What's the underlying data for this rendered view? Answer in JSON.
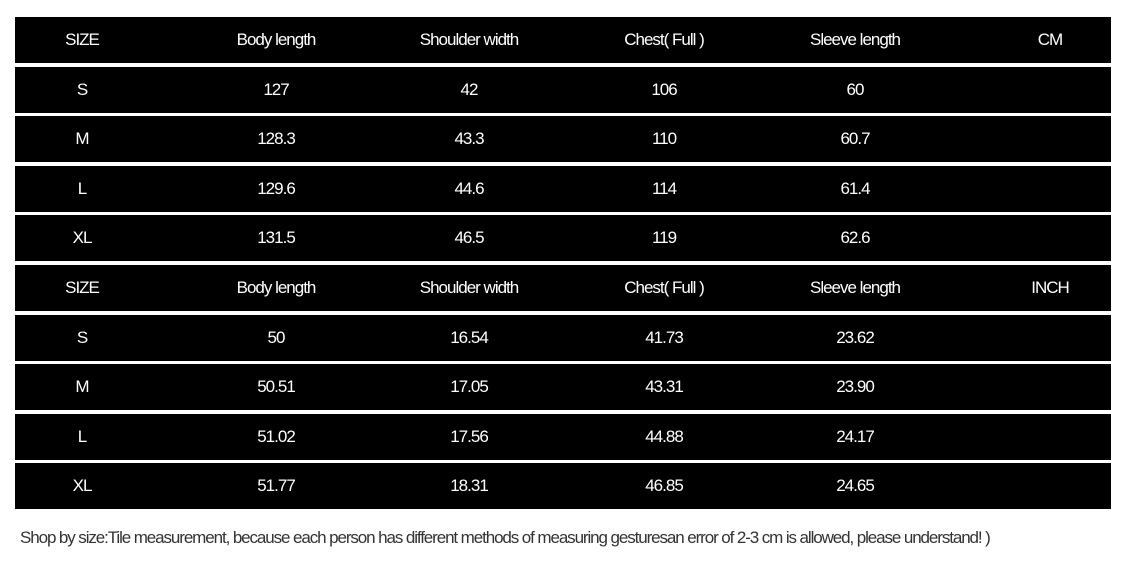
{
  "tables": [
    {
      "header": [
        "SIZE",
        "Body length",
        "Shoulder width",
        "Chest( Full )",
        "Sleeve length",
        "CM"
      ],
      "rows": [
        [
          "S",
          "127",
          "42",
          "106",
          "60"
        ],
        [
          "M",
          "128.3",
          "43.3",
          "110",
          "60.7"
        ],
        [
          "L",
          "129.6",
          "44.6",
          "114",
          "61.4"
        ],
        [
          "XL",
          "131.5",
          "46.5",
          "119",
          "62.6"
        ]
      ]
    },
    {
      "header": [
        "SIZE",
        "Body length",
        "Shoulder width",
        "Chest( Full )",
        "Sleeve length",
        "INCH"
      ],
      "rows": [
        [
          "S",
          "50",
          "16.54",
          "41.73",
          "23.62"
        ],
        [
          "M",
          "50.51",
          "17.05",
          "43.31",
          "23.90"
        ],
        [
          "L",
          "51.02",
          "17.56",
          "44.88",
          "24.17"
        ],
        [
          "XL",
          "51.77",
          "18.31",
          "46.85",
          "24.65"
        ]
      ]
    }
  ],
  "note": "Shop by size:Tile measurement, because each person has different methods of measuring gesturesan error of 2-3 cm is allowed, please understand! )"
}
